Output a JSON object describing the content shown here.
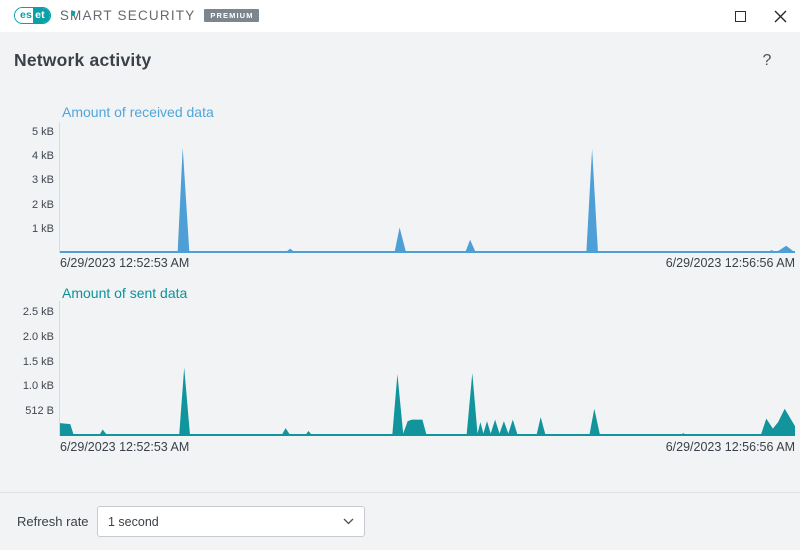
{
  "window": {
    "brand": {
      "logo_left": "es",
      "logo_right": "et",
      "name": "SMART SECURITY",
      "tier": "PREMIUM"
    }
  },
  "header": {
    "title": "Network activity",
    "help": "?"
  },
  "chart_data": [
    {
      "type": "area",
      "title": "Amount of received data",
      "color": "#4D9FD6",
      "ylabel": "",
      "xlabel": "",
      "ylim": [
        0,
        5.4
      ],
      "grid": false,
      "legend": "none",
      "yticks": [
        {
          "label": "5 kB",
          "value": 5
        },
        {
          "label": "4 kB",
          "value": 4
        },
        {
          "label": "3 kB",
          "value": 3
        },
        {
          "label": "2 kB",
          "value": 2
        },
        {
          "label": "1 kB",
          "value": 1
        }
      ],
      "x_start_label": "6/29/2023 12:52:53 AM",
      "x_end_label": "6/29/2023 12:56:56 AM",
      "points_note": "x = fraction of time axis (12:52:53 AM to 12:56:56 AM), y = kB",
      "points": [
        [
          0,
          0
        ],
        [
          0.075,
          0
        ],
        [
          0.082,
          0.07
        ],
        [
          0.09,
          0
        ],
        [
          0.16,
          0
        ],
        [
          0.167,
          4.35
        ],
        [
          0.176,
          0
        ],
        [
          0.306,
          0
        ],
        [
          0.313,
          0.18
        ],
        [
          0.321,
          0
        ],
        [
          0.338,
          0
        ],
        [
          0.343,
          0.07
        ],
        [
          0.349,
          0
        ],
        [
          0.455,
          0
        ],
        [
          0.462,
          1.05
        ],
        [
          0.471,
          0
        ],
        [
          0.551,
          0
        ],
        [
          0.558,
          0.55
        ],
        [
          0.566,
          0
        ],
        [
          0.716,
          0
        ],
        [
          0.724,
          4.3
        ],
        [
          0.732,
          0
        ],
        [
          0.961,
          0
        ],
        [
          0.968,
          0.12
        ],
        [
          0.975,
          0.04
        ],
        [
          0.988,
          0.3
        ],
        [
          1,
          0.02
        ]
      ]
    },
    {
      "type": "area",
      "title": "Amount of sent data",
      "color": "#12949D",
      "ylabel": "",
      "xlabel": "",
      "ylim": [
        0,
        2.72
      ],
      "grid": false,
      "legend": "none",
      "yticks": [
        {
          "label": "2.5 kB",
          "value": 2.5
        },
        {
          "label": "2.0 kB",
          "value": 2.0
        },
        {
          "label": "1.5 kB",
          "value": 1.5
        },
        {
          "label": "1.0 kB",
          "value": 1.0
        },
        {
          "label": "512 B",
          "value": 0.5
        }
      ],
      "x_start_label": "6/29/2023 12:52:53 AM",
      "x_end_label": "6/29/2023 12:56:56 AM",
      "points_note": "x = fraction of time axis (12:52:53 AM to 12:56:56 AM), y = kB",
      "points": [
        [
          0,
          0.26
        ],
        [
          0.014,
          0.24
        ],
        [
          0.019,
          0
        ],
        [
          0.053,
          0
        ],
        [
          0.058,
          0.13
        ],
        [
          0.065,
          0
        ],
        [
          0.162,
          0
        ],
        [
          0.169,
          1.38
        ],
        [
          0.177,
          0
        ],
        [
          0.301,
          0
        ],
        [
          0.307,
          0.16
        ],
        [
          0.314,
          0
        ],
        [
          0.333,
          0
        ],
        [
          0.338,
          0.1
        ],
        [
          0.344,
          0
        ],
        [
          0.452,
          0
        ],
        [
          0.459,
          1.25
        ],
        [
          0.467,
          0.05
        ],
        [
          0.473,
          0.3
        ],
        [
          0.479,
          0.33
        ],
        [
          0.493,
          0.33
        ],
        [
          0.499,
          0
        ],
        [
          0.553,
          0
        ],
        [
          0.561,
          1.27
        ],
        [
          0.568,
          0.05
        ],
        [
          0.572,
          0.28
        ],
        [
          0.576,
          0.05
        ],
        [
          0.581,
          0.3
        ],
        [
          0.586,
          0.05
        ],
        [
          0.592,
          0.33
        ],
        [
          0.598,
          0.05
        ],
        [
          0.604,
          0.3
        ],
        [
          0.61,
          0.05
        ],
        [
          0.616,
          0.33
        ],
        [
          0.623,
          0
        ],
        [
          0.648,
          0
        ],
        [
          0.654,
          0.38
        ],
        [
          0.661,
          0
        ],
        [
          0.72,
          0
        ],
        [
          0.727,
          0.55
        ],
        [
          0.735,
          0
        ],
        [
          0.843,
          0
        ],
        [
          0.848,
          0.06
        ],
        [
          0.853,
          0
        ],
        [
          0.953,
          0
        ],
        [
          0.961,
          0.35
        ],
        [
          0.97,
          0.15
        ],
        [
          0.977,
          0.28
        ],
        [
          0.986,
          0.55
        ],
        [
          1,
          0.2
        ]
      ]
    }
  ],
  "footer": {
    "refresh_rate_label": "Refresh rate",
    "refresh_rate_value": "1 second"
  }
}
